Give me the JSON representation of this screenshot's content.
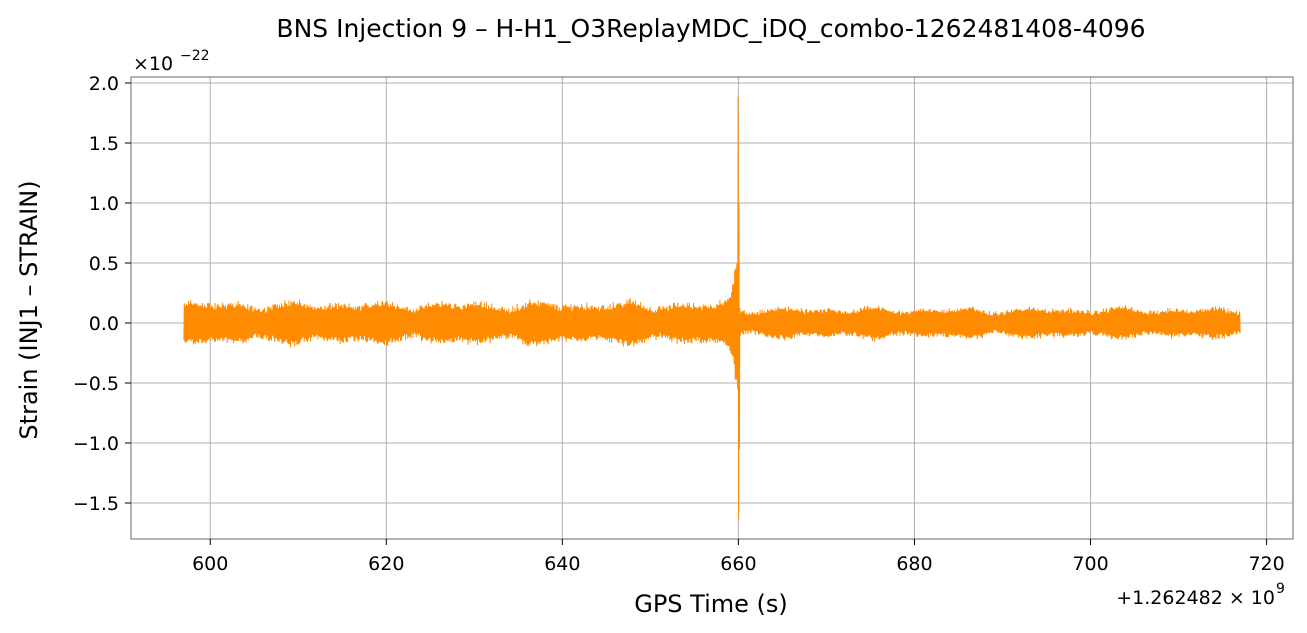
{
  "chart_data": {
    "type": "line",
    "title": "BNS Injection 9 – H-H1_O3ReplayMDC_iDQ_combo-1262481408-4096",
    "xlabel": "GPS Time (s)",
    "ylabel": "Strain (INJ1 – STRAIN)",
    "x_offset_label": "+1.262482 × 10",
    "x_offset_exp": "9",
    "y_scale_label": "×10",
    "y_scale_exp": "−22",
    "xlim": [
      591,
      723
    ],
    "ylim": [
      -1.8,
      2.05
    ],
    "xticks": [
      600,
      620,
      640,
      660,
      680,
      700,
      720
    ],
    "xtick_labels": [
      "600",
      "620",
      "640",
      "660",
      "680",
      "700",
      "720"
    ],
    "yticks": [
      -1.5,
      -1.0,
      -0.5,
      0.0,
      0.5,
      1.0,
      1.5,
      2.0
    ],
    "ytick_labels": [
      "−1.5",
      "−1.0",
      "−0.5",
      "0.0",
      "0.5",
      "1.0",
      "1.5",
      "2.0"
    ],
    "grid": true,
    "line_color": "#ff8c00",
    "series": [
      {
        "x_range": [
          597,
          717
        ],
        "merger_time": 660,
        "background_envelope": 0.15,
        "peak_max": 1.88,
        "peak_min": -1.63
      }
    ]
  }
}
